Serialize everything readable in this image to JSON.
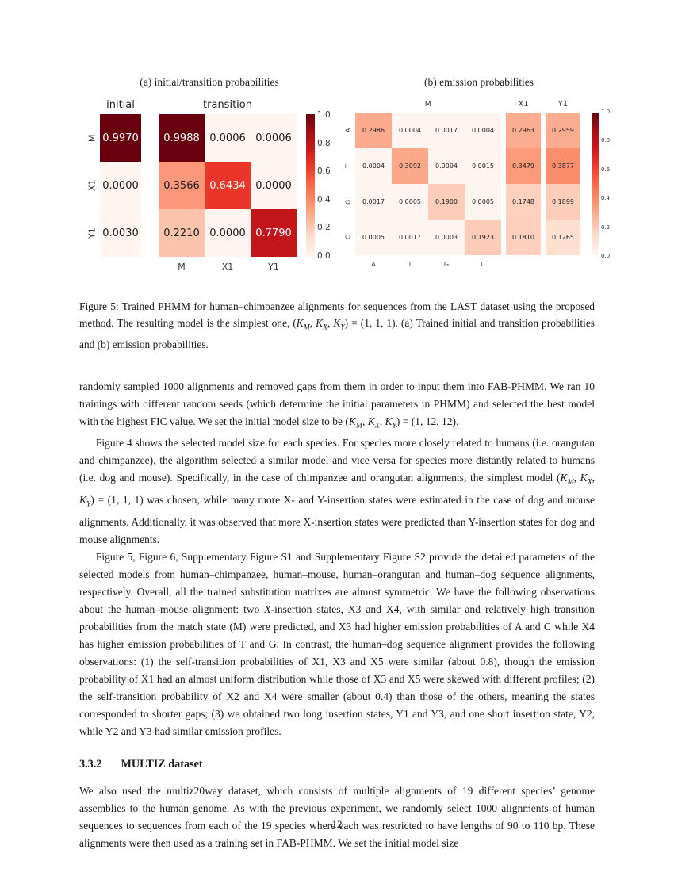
{
  "page_number": "12",
  "figure": {
    "colormap_stops": [
      "#fff5f0",
      "#fee0d2",
      "#fcbba1",
      "#fc9272",
      "#fb6a4a",
      "#ef3b2c",
      "#cb181d",
      "#a50f15",
      "#67000d"
    ],
    "colorbar_ticks": [
      "1.0",
      "0.8",
      "0.6",
      "0.4",
      "0.2",
      "0.0"
    ],
    "panel_a": {
      "type": "heatmap",
      "title": "(a) initial/transition probabilities",
      "initial_label": "initial",
      "transition_label": "transition",
      "row_labels": [
        "M",
        "X1",
        "Y1"
      ],
      "col_labels": [
        "M",
        "X1",
        "Y1"
      ],
      "initial_values": [
        [
          "0.9970"
        ],
        [
          "0.0000"
        ],
        [
          "0.0030"
        ]
      ],
      "transition_values": [
        [
          "0.9988",
          "0.0006",
          "0.0006"
        ],
        [
          "0.3566",
          "0.6434",
          "0.0000"
        ],
        [
          "0.2210",
          "0.0000",
          "0.7790"
        ]
      ]
    },
    "panel_b": {
      "type": "heatmap",
      "title": "(b) emission probabilities",
      "group_labels": [
        "M",
        "X1",
        "Y1"
      ],
      "row_labels": [
        "A",
        "T",
        "G",
        "C"
      ],
      "col_labels": [
        "A",
        "T",
        "G",
        "C"
      ],
      "m_values": [
        [
          "0.2986",
          "0.0004",
          "0.0017",
          "0.0004"
        ],
        [
          "0.0004",
          "0.3092",
          "0.0004",
          "0.0015"
        ],
        [
          "0.0017",
          "0.0005",
          "0.1900",
          "0.0005"
        ],
        [
          "0.0005",
          "0.0017",
          "0.0003",
          "0.1923"
        ]
      ],
      "x1_values": [
        [
          "0.2963"
        ],
        [
          "0.3479"
        ],
        [
          "0.1748"
        ],
        [
          "0.1810"
        ]
      ],
      "y1_values": [
        [
          "0.2959"
        ],
        [
          "0.3877"
        ],
        [
          "0.1899"
        ],
        [
          "0.1265"
        ]
      ]
    }
  },
  "caption_html": "Figure 5: Trained PHMM for human–chimpanzee alignments for sequences from the LAST dataset using the proposed method. The resulting model is the simplest one, (<i>K<sub>M</sub></i>, <i>K<sub>X</sub></i>, <i>K<sub>Y</sub></i>) = (1, 1, 1). (a) Trained initial and transition probabilities and (b) emission probabilities.",
  "paragraphs": [
    "randomly sampled 1000 alignments and removed gaps from them in order to input them into FAB-PHMM. We ran 10 trainings with different random seeds (which determine the initial parameters in PHMM) and selected the best model with the highest FIC value. We set the initial model size to be (<i>K<sub>M</sub></i>, <i>K<sub>X</sub></i>, <i>K<sub>Y</sub></i>) = (1, 12, 12).",
    "Figure 4 shows the selected model size for each species. For species more closely related to humans (i.e. orangutan and chimpanzee), the algorithm selected a similar model and vice versa for species more distantly related to humans (i.e. dog and mouse). Specifically, in the case of chimpanzee and orangutan alignments, the simplest model (<i>K<sub>M</sub></i>, <i>K<sub>X</sub></i>, <i>K<sub>Y</sub></i>) = (1, 1, 1) was chosen, while many more X- and Y-insertion states were estimated in the case of dog and mouse alignments. Additionally, it was observed that more X-insertion states were predicted than Y-insertion states for dog and mouse alignments.",
    "Figure 5, Figure 6, Supplementary Figure S1 and Supplementary Figure S2 provide the detailed parameters of the selected models from human–chimpanzee, human–mouse, human–orangutan and human–dog sequence alignments, respectively. Overall, all the trained substitution matrixes are almost symmetric. We have the following observations about the human–mouse alignment: two <i>X</i>-insertion states, X3 and X4, with similar and relatively high transition probabilities from the match state (M) were predicted, and X3 had higher emission probabilities of A and C while X4 has higher emission probabilities of T and G. In contrast, the human–dog sequence alignment provides the following observations: (1) the self-transition probabilities of X1, X3 and X5 were similar (about 0.8), though the emission probability of X1 had an almost uniform distribution while those of X3 and X5 were skewed with different profiles; (2) the self-transition probability of X2 and X4 were smaller (about 0.4) than those of the others, meaning the states corresponded to shorter gaps; (3) we obtained two long insertion states, Y1 and Y3, and one short insertion state, Y2, while Y2 and Y3 had similar emission profiles.",
    "We also used the multiz20way dataset, which consists of multiple alignments of 19 different species’ genome assemblies to the human genome. As with the previous experiment, we randomly select 1000 alignments of human sequences to sequences from each of the 19 species where each was restricted to have lengths of 90 to 110 bp. These alignments were then used as a training set in FAB-PHMM. We set the initial model size"
  ],
  "section": {
    "number": "3.3.2",
    "title": "MULTIZ dataset"
  }
}
